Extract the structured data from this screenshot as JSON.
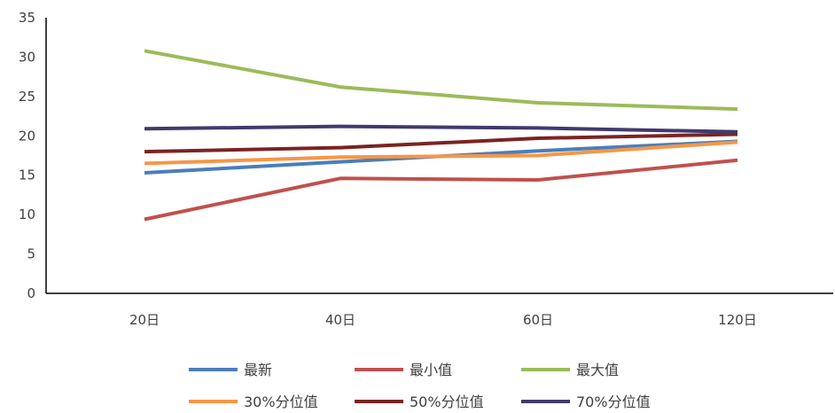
{
  "chart_data": {
    "type": "line",
    "categories": [
      "20日",
      "40日",
      "60日",
      "120日"
    ],
    "ylim": [
      0,
      35
    ],
    "yticks": [
      0,
      5,
      10,
      15,
      20,
      25,
      30,
      35
    ],
    "grid": false,
    "legend_position": "bottom",
    "series": [
      {
        "name": "最新",
        "color": "#4a7ebb",
        "values": [
          15.3,
          16.7,
          18.1,
          19.3
        ]
      },
      {
        "name": "最小值",
        "color": "#c0504d",
        "values": [
          9.4,
          14.6,
          14.4,
          16.9
        ]
      },
      {
        "name": "最大值",
        "color": "#9bbb59",
        "values": [
          30.8,
          26.2,
          24.2,
          23.4
        ]
      },
      {
        "name": "30%分位值",
        "color": "#f79646",
        "values": [
          16.5,
          17.3,
          17.5,
          19.2
        ]
      },
      {
        "name": "50%分位值",
        "color": "#7b2323",
        "values": [
          18.0,
          18.5,
          19.7,
          20.2
        ]
      },
      {
        "name": "70%分位值",
        "color": "#403a6e",
        "values": [
          20.9,
          21.2,
          21.0,
          20.5
        ]
      }
    ]
  }
}
